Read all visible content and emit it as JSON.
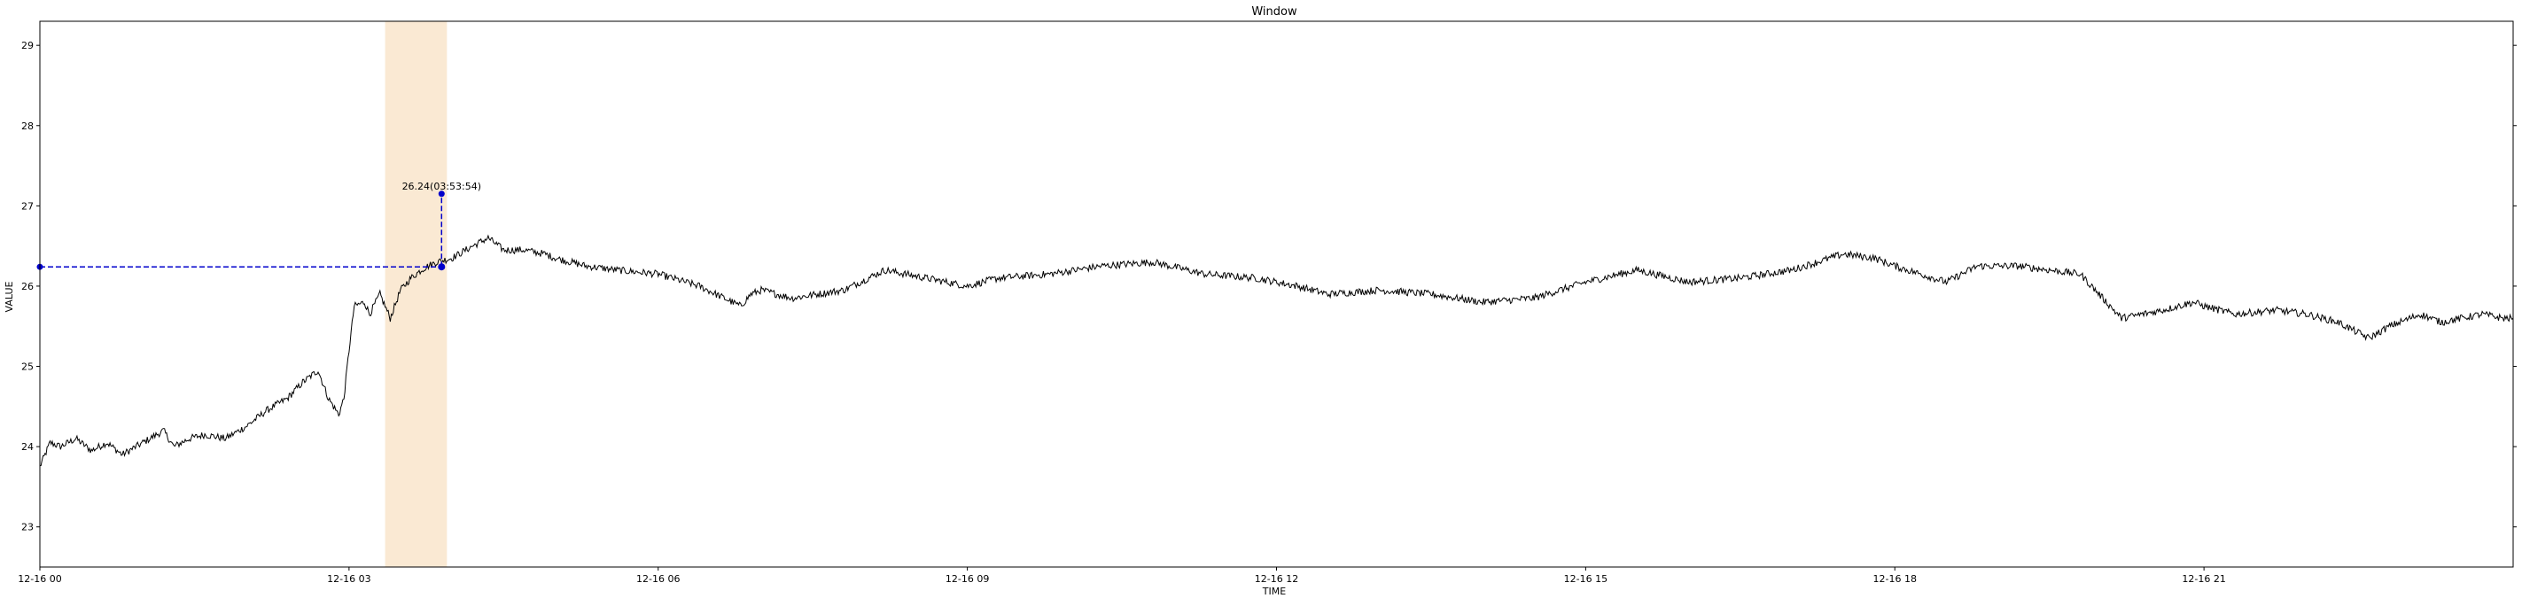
{
  "chart_data": {
    "type": "line",
    "title": "Window",
    "xlabel": "TIME",
    "ylabel": "VALUE",
    "xlim": [
      "12-16 00:00",
      "12-16 24:00"
    ],
    "ylim": [
      22.5,
      29.3
    ],
    "x_ticks": [
      {
        "label": "12-16 00",
        "hour": 0
      },
      {
        "label": "12-16 03",
        "hour": 3
      },
      {
        "label": "12-16 06",
        "hour": 6
      },
      {
        "label": "12-16 09",
        "hour": 9
      },
      {
        "label": "12-16 12",
        "hour": 12
      },
      {
        "label": "12-16 15",
        "hour": 15
      },
      {
        "label": "12-16 18",
        "hour": 18
      },
      {
        "label": "12-16 21",
        "hour": 21
      }
    ],
    "y_ticks": [
      23,
      24,
      25,
      26,
      27,
      28,
      29
    ],
    "grid": false,
    "series": [
      {
        "color": "#000000",
        "x_hours": [
          0.0,
          0.1,
          0.2,
          0.35,
          0.5,
          0.65,
          0.8,
          1.0,
          1.2,
          1.3,
          1.45,
          1.6,
          1.8,
          2.0,
          2.2,
          2.4,
          2.55,
          2.7,
          2.8,
          2.9,
          2.95,
          3.0,
          3.05,
          3.15,
          3.2,
          3.3,
          3.4,
          3.5,
          3.6,
          3.7,
          3.75,
          3.85,
          4.0,
          4.2,
          4.35,
          4.5,
          4.7,
          4.9,
          5.0,
          5.3,
          5.6,
          6.0,
          6.4,
          6.8,
          6.9,
          7.0,
          7.3,
          7.8,
          8.2,
          8.6,
          9.0,
          9.3,
          9.8,
          10.3,
          10.8,
          11.3,
          11.8,
          12.2,
          12.5,
          13.0,
          13.5,
          14.0,
          14.5,
          15.0,
          15.5,
          16.0,
          16.5,
          17.0,
          17.5,
          17.8,
          18.0,
          18.5,
          18.8,
          19.2,
          19.5,
          19.8,
          20.2,
          20.6,
          20.9,
          21.0,
          21.3,
          21.7,
          22.0,
          22.3,
          22.6,
          22.8,
          22.9,
          23.1,
          23.3,
          23.5,
          23.7,
          23.9,
          24.0
        ],
        "y": [
          23.75,
          24.05,
          24.0,
          24.1,
          23.95,
          24.05,
          23.9,
          24.05,
          24.2,
          24.0,
          24.1,
          24.15,
          24.1,
          24.25,
          24.45,
          24.6,
          24.8,
          24.95,
          24.6,
          24.4,
          24.6,
          25.2,
          25.75,
          25.8,
          25.65,
          25.9,
          25.6,
          25.95,
          26.1,
          26.2,
          26.24,
          26.3,
          26.35,
          26.5,
          26.6,
          26.45,
          26.45,
          26.4,
          26.35,
          26.25,
          26.2,
          26.15,
          26.0,
          25.75,
          25.9,
          25.95,
          25.85,
          25.95,
          26.2,
          26.1,
          26.0,
          26.1,
          26.15,
          26.25,
          26.3,
          26.15,
          26.1,
          26.0,
          25.9,
          25.95,
          25.9,
          25.8,
          25.85,
          26.05,
          26.2,
          26.05,
          26.1,
          26.2,
          26.4,
          26.35,
          26.25,
          26.05,
          26.25,
          26.25,
          26.2,
          26.15,
          25.6,
          25.7,
          25.8,
          25.75,
          25.65,
          25.7,
          25.65,
          25.55,
          25.35,
          25.5,
          25.55,
          25.65,
          25.55,
          25.6,
          25.65,
          25.6,
          25.6
        ]
      }
    ],
    "highlight_span": {
      "from_hour": 3.35,
      "to_hour": 3.95,
      "color": "#fae9d3"
    },
    "marker": {
      "time": "03:53:54",
      "hour": 3.898,
      "value": 26.24,
      "label": "26.24(03:53:54)",
      "color": "#0000cc",
      "top_value": 27.15
    }
  }
}
